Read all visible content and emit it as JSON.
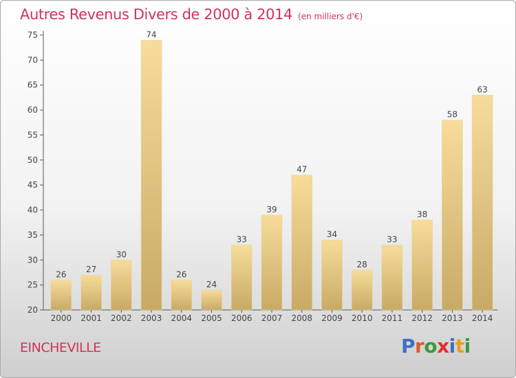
{
  "title": "Autres Revenus Divers de 2000 à 2014",
  "title_unit": "(en milliers d'€)",
  "commune": "EINCHEVILLE",
  "logo": {
    "text": "Proxiti",
    "letter_colors": [
      "#3b6fc7",
      "#e05a2a",
      "#3a9a3a",
      "#e0302a",
      "#3b6fc7",
      "#e8a01a",
      "#3a9a3a"
    ]
  },
  "colors": {
    "title": "#d0335a",
    "bar_light": "#f7dc9a",
    "bar_dark": "#c8aa66"
  },
  "chart_data": {
    "type": "bar",
    "categories": [
      "2000",
      "2001",
      "2002",
      "2003",
      "2004",
      "2005",
      "2006",
      "2007",
      "2008",
      "2009",
      "2010",
      "2011",
      "2012",
      "2013",
      "2014"
    ],
    "values": [
      26,
      27,
      30,
      74,
      26,
      24,
      33,
      39,
      47,
      34,
      28,
      33,
      38,
      58,
      63
    ],
    "ylim": [
      20,
      75
    ],
    "yticks": [
      20,
      25,
      30,
      35,
      40,
      45,
      50,
      55,
      60,
      65,
      70,
      75
    ],
    "grid": false,
    "legend": "none"
  }
}
